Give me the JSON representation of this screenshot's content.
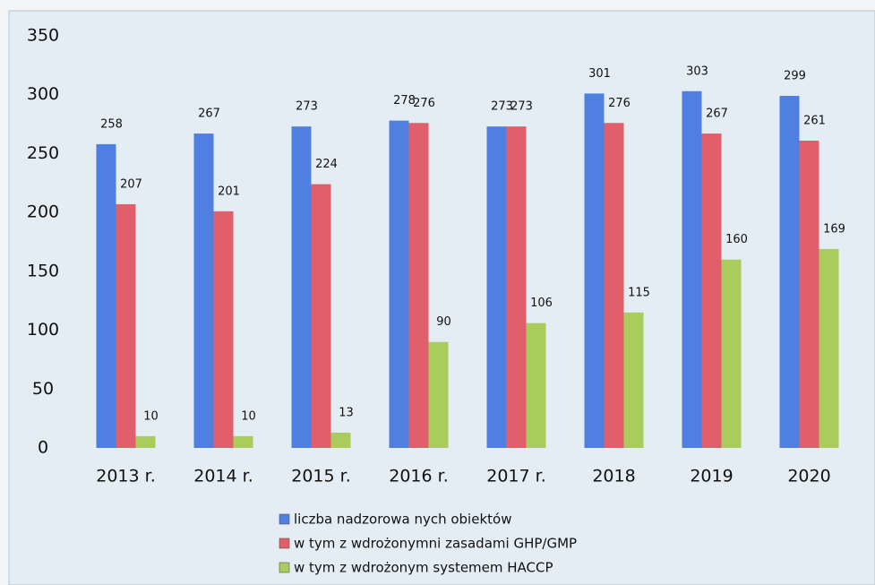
{
  "chart_data": {
    "type": "bar",
    "categories": [
      "2013 r.",
      "2014 r.",
      "2015 r.",
      "2016 r.",
      "2017 r.",
      "2018",
      "2019",
      "2020"
    ],
    "series": [
      {
        "name": "liczba nadzorowa nych obiektów",
        "color": "#4f7fe0",
        "values": [
          258,
          267,
          273,
          278,
          273,
          301,
          303,
          299
        ]
      },
      {
        "name": "w tym z wdrożonymni zasadami GHP/GMP",
        "color": "#e05f6b",
        "values": [
          207,
          201,
          224,
          276,
          273,
          276,
          267,
          261
        ]
      },
      {
        "name": "w tym z wdrożonym systemem HACCP",
        "color": "#a9cc5c",
        "values": [
          10,
          10,
          13,
          90,
          106,
          115,
          160,
          169
        ]
      }
    ],
    "ylim": [
      0,
      350
    ],
    "yticks": [
      0,
      50,
      100,
      150,
      200,
      250,
      300,
      350
    ],
    "grid": false,
    "legend": "bottom"
  }
}
